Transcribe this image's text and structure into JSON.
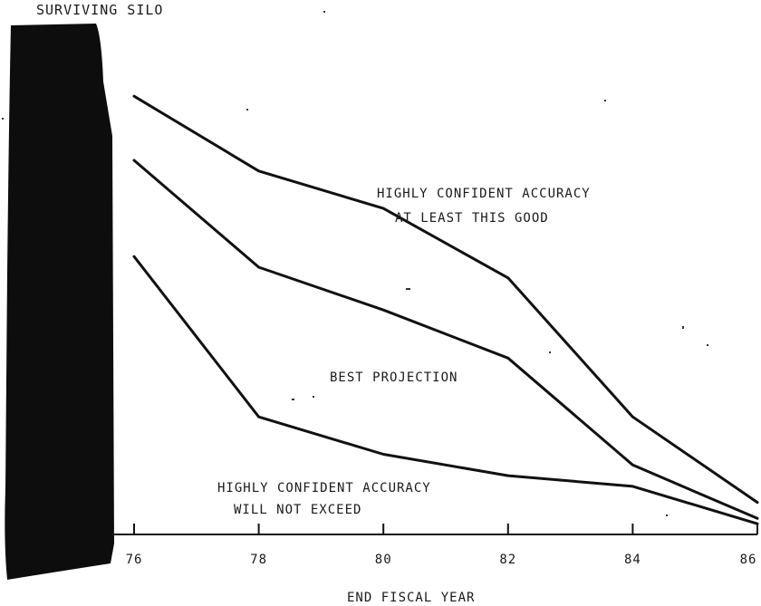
{
  "chart_data": {
    "type": "line",
    "ylabel": "SURVIVING SILO",
    "xlabel": "END FISCAL YEAR",
    "x": [
      76,
      78,
      80,
      82,
      84,
      86
    ],
    "xticks": [
      "76",
      "78",
      "80",
      "82",
      "84",
      "86"
    ],
    "xlim": [
      76,
      86
    ],
    "ylim": [
      0,
      100
    ],
    "grid": false,
    "legend": "none",
    "series": [
      {
        "key": "upper",
        "values": [
          82,
          68,
          61,
          48,
          22,
          6
        ]
      },
      {
        "key": "best",
        "values": [
          70,
          50,
          42,
          33,
          13,
          3
        ]
      },
      {
        "key": "lower",
        "values": [
          52,
          22,
          15,
          11,
          9,
          2
        ]
      }
    ],
    "annotations": [
      {
        "key": "upper",
        "lines": [
          "HIGHLY CONFIDENT ACCURACY",
          "AT LEAST THIS GOOD"
        ]
      },
      {
        "key": "best",
        "lines": [
          "BEST PROJECTION"
        ]
      },
      {
        "key": "lower",
        "lines": [
          "HIGHLY CONFIDENT ACCURACY",
          "WILL NOT EXCEED"
        ]
      }
    ]
  }
}
